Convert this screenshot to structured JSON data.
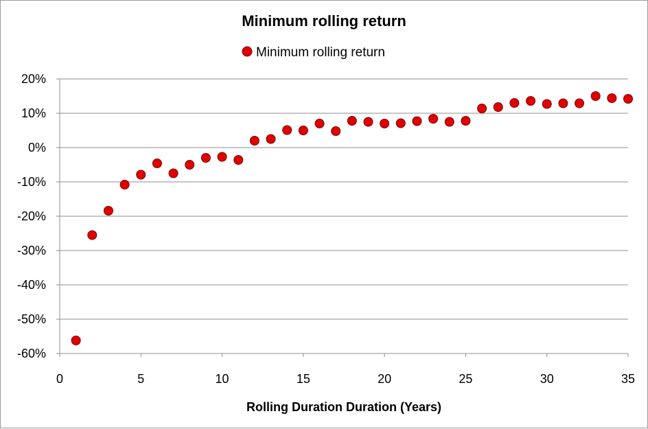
{
  "chart_data": {
    "type": "scatter",
    "title": "Minimum rolling return",
    "xlabel": "Rolling Duration Duration (Years)",
    "ylabel": "",
    "xlim": [
      0,
      35
    ],
    "ylim": [
      -60,
      20
    ],
    "xticks": [
      0,
      5,
      10,
      15,
      20,
      25,
      30,
      35
    ],
    "yticks": [
      20,
      10,
      0,
      -10,
      -20,
      -30,
      -40,
      -50,
      -60
    ],
    "ytick_labels": [
      "20%",
      "10%",
      "0%",
      "-10%",
      "-20%",
      "-30%",
      "-40%",
      "-50%",
      "-60%"
    ],
    "grid": "horizontal",
    "legend_position": "top-center",
    "series": [
      {
        "name": "Minimum rolling return",
        "color": "#e00000",
        "x": [
          1,
          2,
          3,
          4,
          5,
          6,
          7,
          8,
          9,
          10,
          11,
          12,
          13,
          14,
          15,
          16,
          17,
          18,
          19,
          20,
          21,
          22,
          23,
          24,
          25,
          26,
          27,
          28,
          29,
          30,
          31,
          32,
          33,
          34,
          35
        ],
        "y": [
          -56.2,
          -25.5,
          -18.4,
          -10.8,
          -7.9,
          -4.6,
          -7.5,
          -5.0,
          -3.0,
          -2.7,
          -3.6,
          2.0,
          2.5,
          5.1,
          5.0,
          7.0,
          4.8,
          7.8,
          7.5,
          7.0,
          7.1,
          7.7,
          8.4,
          7.5,
          7.8,
          11.4,
          11.8,
          13.0,
          13.6,
          12.7,
          12.9,
          12.9,
          15.0,
          14.4,
          14.2
        ]
      }
    ]
  }
}
